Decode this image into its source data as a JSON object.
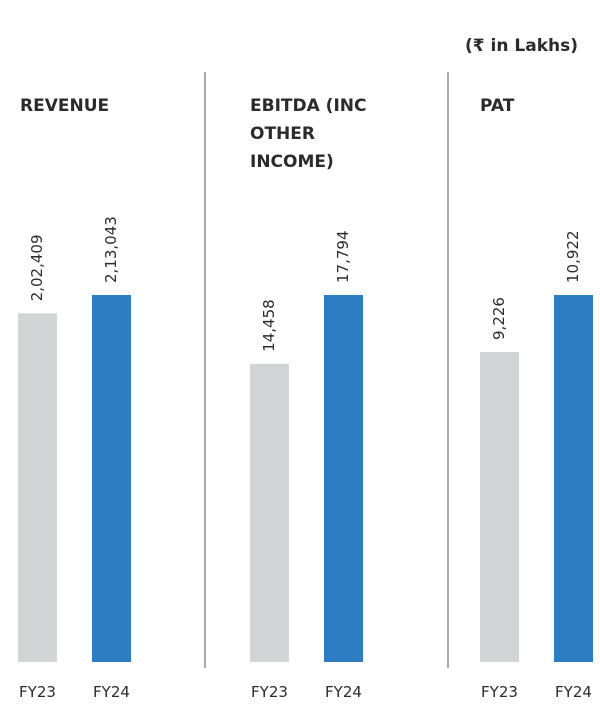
{
  "note": "(₹ in Lakhs)",
  "chart_data": [
    {
      "type": "bar",
      "title": "REVENUE",
      "categories": [
        "FY23",
        "FY24"
      ],
      "values": [
        202409,
        213043
      ],
      "value_labels": [
        "2,02,409",
        "2,13,043"
      ],
      "colors": [
        "#d3d4d6",
        "#2e7cc1"
      ],
      "ylim": [
        0,
        220000
      ]
    },
    {
      "type": "bar",
      "title": "EBITDA (INC OTHER INCOME)",
      "categories": [
        "FY23",
        "FY24"
      ],
      "values": [
        14458,
        17794
      ],
      "value_labels": [
        "14,458",
        "17,794"
      ],
      "colors": [
        "#d3d4d6",
        "#2e7cc1"
      ],
      "ylim": [
        0,
        18376
      ]
    },
    {
      "type": "bar",
      "title": "PAT",
      "categories": [
        "FY23",
        "FY24"
      ],
      "values": [
        9226,
        10922
      ],
      "value_labels": [
        "9,226",
        "10,922"
      ],
      "colors": [
        "#d3d4d6",
        "#2e7cc1"
      ],
      "ylim": [
        0,
        11279
      ]
    }
  ]
}
